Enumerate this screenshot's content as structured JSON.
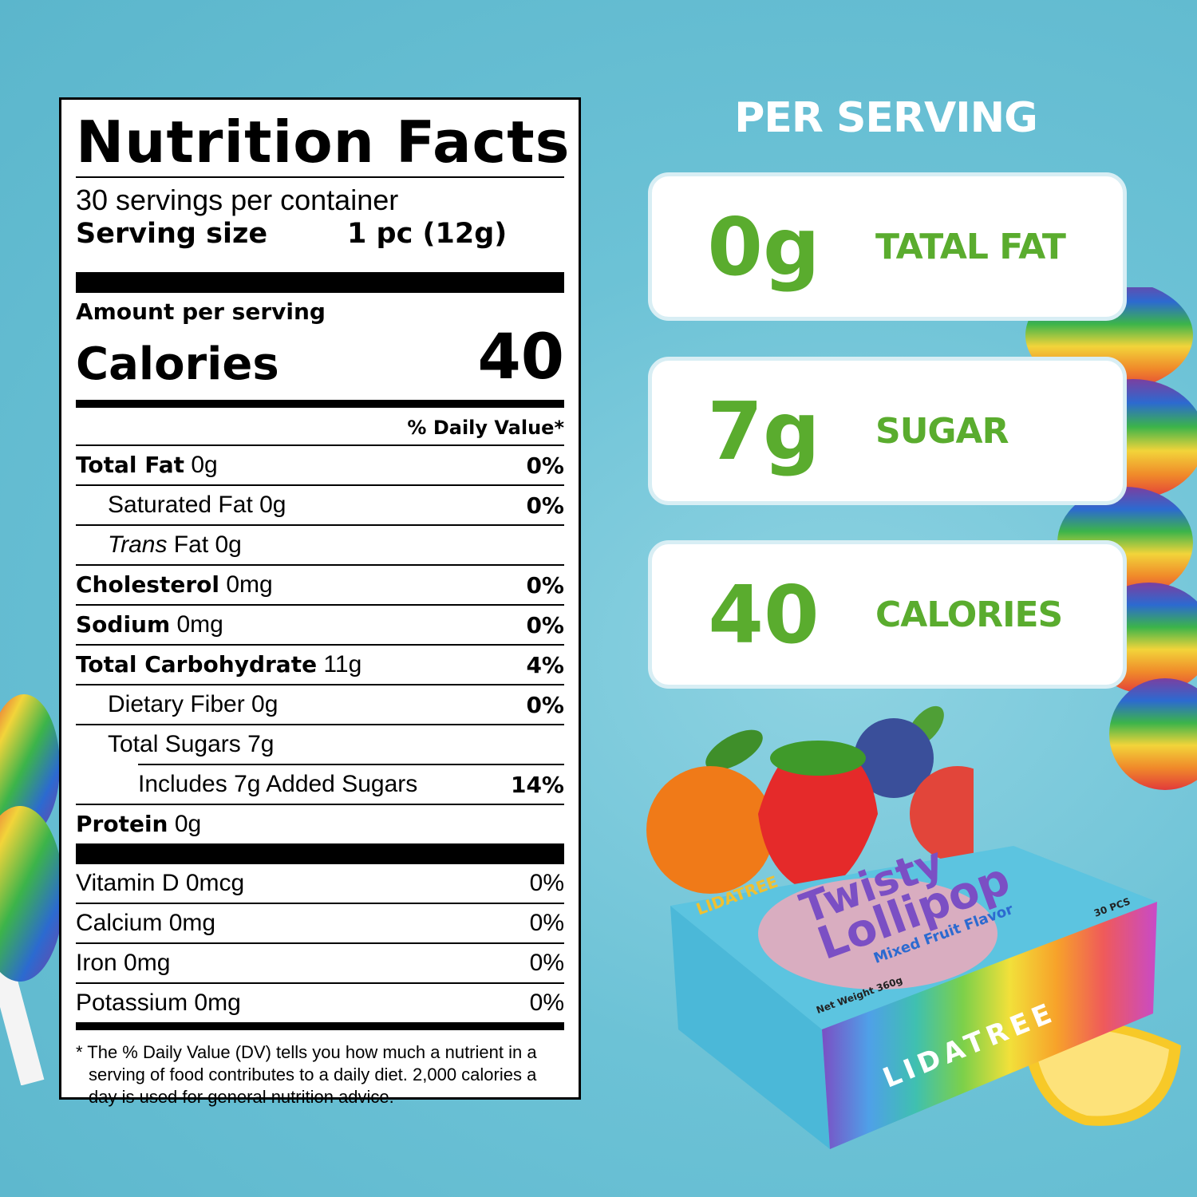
{
  "label": {
    "title": "Nutrition Facts",
    "servings_per_container": "30 servings per container",
    "serving_size_label": "Serving size",
    "serving_size_value": "1 pc (12g)",
    "amount_per_serving": "Amount per serving",
    "calories_label": "Calories",
    "calories_value": "40",
    "daily_value_header": "% Daily Value*",
    "nutrients": [
      {
        "name": "Total Fat",
        "amount": " 0g",
        "dv": "0%"
      },
      {
        "name": "Saturated Fat 0g",
        "amount": "",
        "dv": "0%"
      },
      {
        "name": "Trans",
        "amount": " Fat 0g",
        "dv": ""
      },
      {
        "name": "Cholesterol",
        "amount": " 0mg",
        "dv": "0%"
      },
      {
        "name": "Sodium",
        "amount": " 0mg",
        "dv": "0%"
      },
      {
        "name": "Total Carbohydrate",
        "amount": " 11g",
        "dv": "4%"
      },
      {
        "name": "Dietary Fiber 0g",
        "amount": "",
        "dv": "0%"
      },
      {
        "name": "Total Sugars 7g",
        "amount": "",
        "dv": ""
      },
      {
        "name": "Includes 7g Added Sugars",
        "amount": "",
        "dv": "14%"
      },
      {
        "name": "Protein",
        "amount": " 0g",
        "dv": ""
      }
    ],
    "vitamins": [
      {
        "name": "Vitamin D 0mcg",
        "dv": "0%"
      },
      {
        "name": "Calcium 0mg",
        "dv": "0%"
      },
      {
        "name": "Iron 0mg",
        "dv": "0%"
      },
      {
        "name": "Potassium 0mg",
        "dv": "0%"
      }
    ],
    "footnote": "* The % Daily Value (DV) tells you how much a nutrient in a serving of food contributes to a daily diet. 2,000 calories a day is used for general nutrition advice."
  },
  "per_serving": {
    "heading": "PER SERVING",
    "cards": [
      {
        "value": "0g",
        "label": "TATAL FAT"
      },
      {
        "value": "7g",
        "label": "SUGAR"
      },
      {
        "value": "40",
        "label": "CALORIES"
      }
    ]
  },
  "product_box": {
    "brand_small": "LIDATREE",
    "name_line1": "Twisty",
    "name_line2": "Lollipop",
    "flavor": "Mixed Fruit Flavor",
    "count": "30 PCS",
    "net_weight": "Net Weight 360g",
    "brand_side": "LIDATREE"
  },
  "colors": {
    "background": "#6cc2d6",
    "accent_green": "#5aac2e",
    "card_bg": "#ffffff"
  }
}
